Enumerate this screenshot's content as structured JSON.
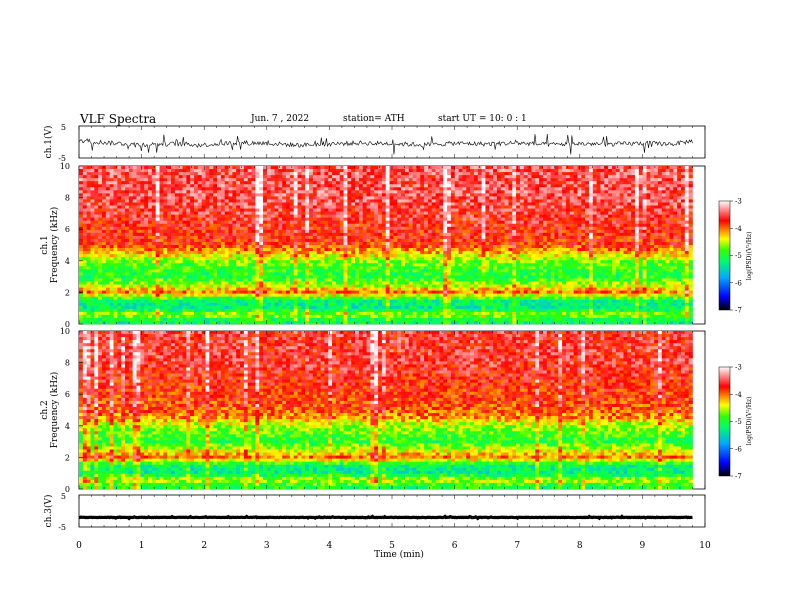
{
  "header": {
    "title": "VLF  Spectra",
    "date": "Jun. 7  , 2022",
    "station": "station= ATH",
    "start": "start  UT  =    10: 0   : 1"
  },
  "colorbar": {
    "label": "log(PSD)(V²/Hz)",
    "ticks": [
      "-3",
      "-4",
      "-5",
      "-6",
      "-7"
    ],
    "range": [
      -7,
      -3
    ],
    "colors": [
      "#000000",
      "#0000ff",
      "#00aaff",
      "#00ff66",
      "#33ff00",
      "#ffff00",
      "#ff9900",
      "#ff0000",
      "#ffffff"
    ]
  },
  "chart_data": [
    {
      "type": "line",
      "ylabel": "ch.1(V)",
      "ylim": [
        -5,
        5
      ],
      "yticks": [
        "5",
        "-5"
      ],
      "x": [
        0.0,
        0.5,
        1.0,
        1.5,
        2.0,
        2.5,
        3.0,
        3.5,
        4.0,
        4.5,
        5.0,
        5.5,
        6.0,
        6.5,
        7.0,
        7.5,
        8.0,
        8.5,
        9.0,
        9.5,
        9.8
      ],
      "values": [
        0.5,
        -0.3,
        -0.8,
        -0.6,
        -0.9,
        -0.2,
        -0.4,
        -1.0,
        -0.6,
        -0.3,
        -0.5,
        -0.9,
        -0.4,
        -0.6,
        -0.3,
        -0.8,
        -0.5,
        -0.7,
        -0.4,
        -0.6,
        0.3
      ],
      "noise_amplitude": 3.5,
      "line_color": "#000000"
    },
    {
      "type": "heatmap",
      "ylabel_top": "ch.1",
      "ylabel": "Frequency  (kHz)",
      "ylim": [
        0,
        10
      ],
      "yticks": [
        "0",
        "2",
        "4",
        "6",
        "8",
        "10"
      ],
      "freq_kHz": [
        0.2,
        0.6,
        1.0,
        1.5,
        2.0,
        2.5,
        3.0,
        3.5,
        4.0,
        4.5,
        5.0,
        6.0,
        7.0,
        8.0,
        9.0,
        10.0
      ],
      "log_psd": [
        -5.2,
        -4.6,
        -5.3,
        -5.2,
        -4.0,
        -4.6,
        -5.0,
        -4.9,
        -4.7,
        -4.2,
        -3.8,
        -3.7,
        -3.6,
        -3.5,
        -3.5,
        -3.5
      ]
    },
    {
      "type": "heatmap",
      "ylabel_top": "ch.2",
      "ylabel": "Frequency  (kHz)",
      "ylim": [
        0,
        10
      ],
      "yticks": [
        "0",
        "2",
        "4",
        "6",
        "8",
        "10"
      ],
      "freq_kHz": [
        0.2,
        0.6,
        1.0,
        1.5,
        2.0,
        2.5,
        3.0,
        3.5,
        4.0,
        4.5,
        5.0,
        6.0,
        7.0,
        8.0,
        9.0,
        10.0
      ],
      "log_psd": [
        -5.0,
        -4.5,
        -5.3,
        -5.2,
        -4.0,
        -4.5,
        -5.0,
        -4.8,
        -4.6,
        -4.1,
        -3.9,
        -3.8,
        -3.7,
        -3.6,
        -3.6,
        -3.6
      ]
    },
    {
      "type": "line",
      "ylabel": "ch.3(V)",
      "ylim": [
        -5,
        5
      ],
      "yticks": [
        "5",
        "-5"
      ],
      "x": [
        0.0,
        9.8
      ],
      "values": [
        -2.0,
        -2.0
      ],
      "noise_amplitude": 0.3,
      "line_color": "#000000"
    }
  ],
  "xaxis": {
    "label": "Time  (min)",
    "xlim": [
      0,
      10
    ],
    "ticks": [
      "0",
      "1",
      "2",
      "3",
      "4",
      "5",
      "6",
      "7",
      "8",
      "9",
      "10"
    ],
    "data_end": 9.8
  }
}
